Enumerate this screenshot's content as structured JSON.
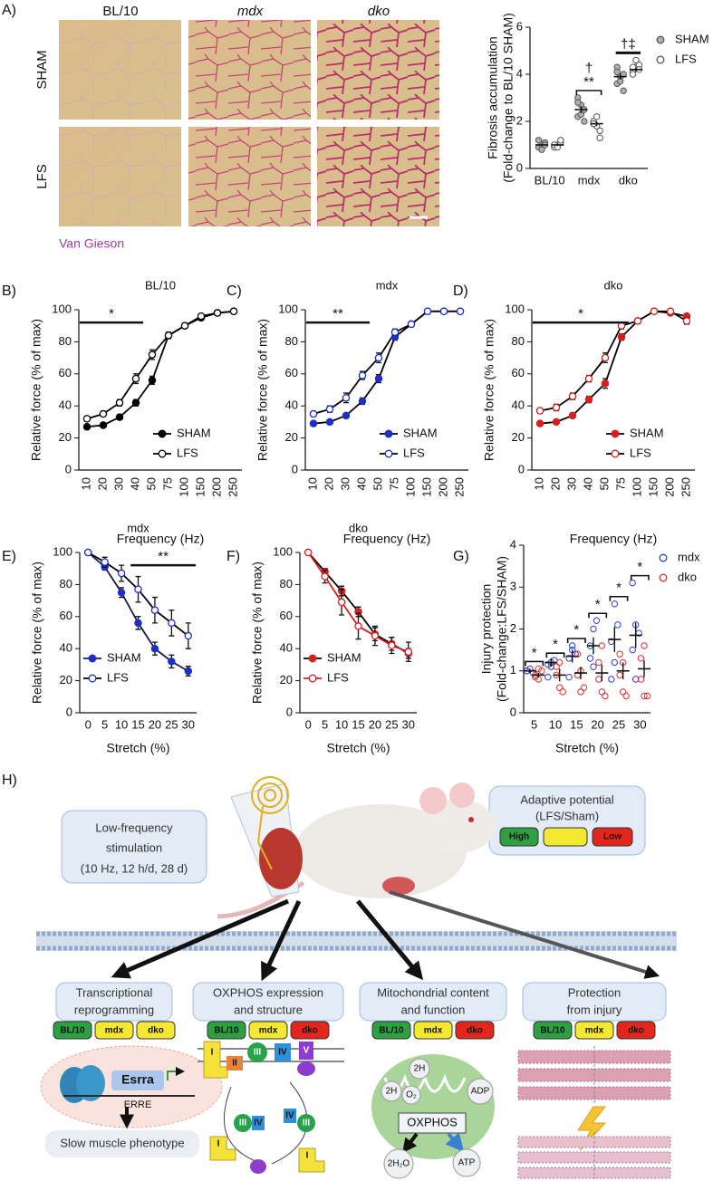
{
  "figure": {
    "panel_labels": [
      "A)",
      "B)",
      "C)",
      "D)",
      "E)",
      "F)",
      "G)",
      "H)"
    ]
  },
  "micrographs": {
    "columns": [
      "BL/10",
      "mdx",
      "dko"
    ],
    "rows": [
      "SHAM",
      "LFS"
    ],
    "stain": "Van Gieson"
  },
  "chart_data": [
    {
      "type": "dot",
      "ylabel": [
        "Fibrosis accumulation",
        "(Fold-change to BL/10 SHAM)"
      ],
      "categories": [
        "BL/10",
        "mdx",
        "dko"
      ],
      "ylim": [
        0,
        6
      ],
      "yticks": [
        0,
        2,
        4,
        6
      ],
      "legend": "right",
      "series": [
        {
          "name": "SHAM",
          "color": "#555555",
          "fill": "#b0b0b0",
          "points": [
            [
              0.9,
              1.0,
              1.1,
              1.2,
              0.8,
              1.0
            ],
            [
              3.0,
              2.7,
              2.5,
              2.2,
              2.3,
              2.0,
              2.8
            ],
            [
              3.6,
              3.9,
              4.0,
              4.3,
              3.7,
              3.3,
              4.1
            ]
          ],
          "means": [
            1.0,
            2.5,
            3.9
          ],
          "errors": [
            0.05,
            0.15,
            0.12
          ]
        },
        {
          "name": "LFS",
          "color": "#555555",
          "fill": "#ffffff",
          "points": [
            [
              0.9,
              1.0,
              1.1,
              1.0,
              0.9,
              1.2
            ],
            [
              2.0,
              1.8,
              1.6,
              1.9,
              2.2,
              1.3,
              1.9
            ],
            [
              4.1,
              4.3,
              4.4,
              4.0,
              4.6,
              4.2,
              4.3
            ]
          ],
          "means": [
            1.0,
            1.9,
            4.2
          ],
          "errors": [
            0.05,
            0.1,
            0.08
          ]
        }
      ],
      "annotations": [
        {
          "category": "mdx",
          "style": "bracket",
          "labels": [
            "**",
            "†"
          ]
        },
        {
          "category": "dko",
          "style": "bar",
          "labels": [
            "†‡"
          ]
        }
      ]
    },
    {
      "type": "line",
      "title": "BL/10",
      "xlabel": "Frequency (Hz)",
      "ylabel": "Relative force (% of max)",
      "categories": [
        "10",
        "20",
        "30",
        "40",
        "50",
        "75",
        "100",
        "150",
        "200",
        "250"
      ],
      "rotate_xticks": true,
      "ylim": [
        0,
        100
      ],
      "yticks": [
        0,
        20,
        40,
        60,
        80,
        100
      ],
      "legend": "lower right",
      "series": [
        {
          "name": "SHAM",
          "color": "#000000",
          "fill": "#000000",
          "line_color": "#000000",
          "values": [
            27,
            28,
            33,
            42,
            56,
            84,
            90,
            95,
            98,
            99
          ],
          "errors": [
            1,
            1,
            1.5,
            2,
            2.5,
            2,
            1.5,
            1,
            1,
            1
          ]
        },
        {
          "name": "LFS",
          "color": "#000000",
          "fill": "#ffffff",
          "line_color": "#000000",
          "values": [
            32,
            35,
            42,
            57,
            72,
            84,
            90,
            96,
            98,
            99
          ],
          "errors": [
            1.5,
            1.5,
            2,
            3,
            3,
            2,
            1.5,
            1,
            1,
            1
          ]
        }
      ],
      "significance": {
        "label": "*",
        "from": "10",
        "to": "40"
      }
    },
    {
      "type": "line",
      "title": "mdx",
      "xlabel": "Frequency (Hz)",
      "ylabel": "Relative force (% of max)",
      "categories": [
        "10",
        "20",
        "30",
        "40",
        "50",
        "75",
        "100",
        "150",
        "200",
        "250"
      ],
      "rotate_xticks": true,
      "ylim": [
        0,
        100
      ],
      "yticks": [
        0,
        20,
        40,
        60,
        80,
        100
      ],
      "legend": "lower right",
      "series": [
        {
          "name": "SHAM",
          "color": "#1f2fc4",
          "fill": "#1f2fc4",
          "line_color": "#000000",
          "values": [
            29,
            30,
            34,
            43,
            57,
            83,
            91,
            99,
            99,
            99
          ],
          "errors": [
            1,
            1,
            1.5,
            2,
            2.5,
            2,
            1.5,
            1,
            1,
            1
          ]
        },
        {
          "name": "LFS",
          "color": "#1f2fc4",
          "fill": "#ffffff",
          "line_color": "#000000",
          "values": [
            35,
            38,
            45,
            59,
            70,
            86,
            91,
            99,
            99,
            99
          ],
          "errors": [
            1.5,
            2,
            3,
            2.5,
            3,
            2,
            1.5,
            1,
            1,
            1
          ]
        }
      ],
      "significance": {
        "label": "**",
        "from": "10",
        "to": "40"
      }
    },
    {
      "type": "line",
      "title": "dko",
      "xlabel": "Frequency (Hz)",
      "ylabel": "Relative force (% of max)",
      "categories": [
        "10",
        "20",
        "30",
        "40",
        "50",
        "75",
        "100",
        "150",
        "200",
        "250"
      ],
      "rotate_xticks": true,
      "ylim": [
        0,
        100
      ],
      "yticks": [
        0,
        20,
        40,
        60,
        80,
        100
      ],
      "legend": "lower right",
      "series": [
        {
          "name": "SHAM",
          "color": "#d42020",
          "fill": "#d42020",
          "line_color": "#000000",
          "values": [
            29,
            30,
            34,
            44,
            54,
            83,
            93,
            99,
            98,
            96
          ],
          "errors": [
            1,
            1,
            1.5,
            2,
            3,
            2,
            1.5,
            1,
            1,
            1.5
          ]
        },
        {
          "name": "LFS",
          "color": "#d42020",
          "fill": "#ffffff",
          "line_color": "#000000",
          "values": [
            37,
            39,
            46,
            57,
            70,
            90,
            93,
            99,
            99,
            93
          ],
          "errors": [
            1.5,
            2,
            2,
            2,
            3,
            2,
            1.5,
            1,
            1,
            2
          ]
        }
      ],
      "significance": {
        "label": "*",
        "from": "10",
        "to": "75"
      }
    },
    {
      "type": "line",
      "title": "mdx",
      "xlabel": "Stretch (%)",
      "ylabel": "Relative force (% of max)",
      "categories": [
        "0",
        "5",
        "10",
        "15",
        "20",
        "25",
        "30"
      ],
      "ylim": [
        0,
        100
      ],
      "yticks": [
        0,
        20,
        40,
        60,
        80,
        100
      ],
      "legend": "lower left",
      "series": [
        {
          "name": "SHAM",
          "color": "#1f2fc4",
          "fill": "#1f2fc4",
          "line_color": "#1a1a4a",
          "values": [
            100,
            91,
            75,
            56,
            40,
            32,
            26
          ],
          "errors": [
            0,
            2,
            3,
            4,
            4,
            4,
            3
          ]
        },
        {
          "name": "LFS",
          "color": "#1f2fc4",
          "fill": "#ffffff",
          "line_color": "#000000",
          "values": [
            100,
            94,
            87,
            77,
            64,
            56,
            48
          ],
          "errors": [
            0,
            3,
            5,
            8,
            8,
            8,
            8
          ]
        }
      ],
      "significance": {
        "label": "**",
        "from": "15",
        "to": "30"
      }
    },
    {
      "type": "line",
      "title": "dko",
      "xlabel": "Stretch (%)",
      "ylabel": "Relative force (% of max)",
      "categories": [
        "0",
        "5",
        "10",
        "15",
        "20",
        "25",
        "30"
      ],
      "ylim": [
        0,
        100
      ],
      "yticks": [
        0,
        20,
        40,
        60,
        80,
        100
      ],
      "legend": "lower left",
      "series": [
        {
          "name": "SHAM",
          "color": "#d42020",
          "fill": "#d42020",
          "line_color": "#000000",
          "values": [
            100,
            88,
            76,
            63,
            49,
            43,
            37
          ],
          "errors": [
            0,
            2,
            3,
            3,
            4,
            4,
            3
          ]
        },
        {
          "name": "LFS",
          "color": "#d42020",
          "fill": "#ffffff",
          "line_color": "#d42020",
          "values": [
            100,
            85,
            69,
            54,
            48,
            42,
            38
          ],
          "errors": [
            0,
            4,
            8,
            8,
            6,
            5,
            6
          ]
        }
      ]
    },
    {
      "type": "dot",
      "xlabel": "Stretch (%)",
      "ylabel": [
        "Injury protection",
        "(Fold-change:LFS/SHAM)"
      ],
      "categories": [
        "5",
        "10",
        "15",
        "20",
        "25",
        "30"
      ],
      "ylim": [
        0,
        4
      ],
      "yticks": [
        0,
        1,
        2,
        3,
        4
      ],
      "legend": "right",
      "series": [
        {
          "name": "mdx",
          "color": "#2a3fd6",
          "fill": "none",
          "points": [
            [
              1.0,
              1.05,
              0.95,
              1.0
            ],
            [
              1.15,
              1.2,
              1.25,
              0.85,
              1.1
            ],
            [
              1.3,
              1.5,
              1.4,
              0.85,
              1.6
            ],
            [
              1.6,
              2.0,
              2.2,
              1.3,
              1.1
            ],
            [
              1.7,
              2.6,
              2.1,
              0.8,
              1.2
            ],
            [
              3.1,
              2.1,
              1.9,
              1.5,
              0.8
            ]
          ],
          "means": [
            1.0,
            1.2,
            1.35,
            1.6,
            1.75,
            1.85
          ],
          "errors": [
            0.05,
            0.1,
            0.15,
            0.2,
            0.3,
            0.3
          ]
        },
        {
          "name": "dko",
          "color": "#e03030",
          "fill": "none",
          "points": [
            [
              0.9,
              0.8,
              1.0,
              0.85,
              1.05
            ],
            [
              0.9,
              0.6,
              0.5,
              1.1,
              1.2
            ],
            [
              0.9,
              0.5,
              0.6,
              1.4,
              1.0
            ],
            [
              0.8,
              0.5,
              0.4,
              1.2,
              1.6
            ],
            [
              0.9,
              0.5,
              0.4,
              1.4,
              1.2
            ],
            [
              1.3,
              0.4,
              0.4,
              0.8,
              1.6
            ]
          ],
          "means": [
            0.9,
            0.9,
            0.95,
            0.95,
            1.0,
            1.05
          ],
          "errors": [
            0.05,
            0.15,
            0.15,
            0.2,
            0.2,
            0.2
          ]
        }
      ],
      "annotations": [
        {
          "category": "5",
          "style": "bracket",
          "labels": [
            "*"
          ]
        },
        {
          "category": "10",
          "style": "bracket",
          "labels": [
            "*"
          ]
        },
        {
          "category": "15",
          "style": "bracket",
          "labels": [
            "*"
          ]
        },
        {
          "category": "20",
          "style": "bracket",
          "labels": [
            "*"
          ]
        },
        {
          "category": "25",
          "style": "bracket",
          "labels": [
            "*"
          ]
        },
        {
          "category": "30",
          "style": "bracket",
          "labels": [
            "*"
          ]
        }
      ]
    }
  ],
  "diagram": {
    "stimulation": [
      "Low-frequency",
      "stimulation",
      "(10 Hz, 12 h/d, 28 d)"
    ],
    "adaptive_potential": {
      "title": [
        "Adaptive potential",
        "(LFS/Sham)"
      ],
      "high": "High",
      "low": "Low"
    },
    "outcomes": [
      {
        "title": [
          "Transcriptional",
          "reprogramming"
        ],
        "badges": [
          {
            "label": "BL/10",
            "color": "#2ea043"
          },
          {
            "label": "mdx",
            "color": "#f5e833"
          },
          {
            "label": "dko",
            "color": "#f5e833"
          }
        ]
      },
      {
        "title": [
          "OXPHOS expression",
          "and structure"
        ],
        "badges": [
          {
            "label": "BL/10",
            "color": "#2ea043"
          },
          {
            "label": "mdx",
            "color": "#f5e833"
          },
          {
            "label": "dko",
            "color": "#e3261c"
          }
        ]
      },
      {
        "title": [
          "Mitochondrial content",
          "and function"
        ],
        "badges": [
          {
            "label": "BL/10",
            "color": "#2ea043"
          },
          {
            "label": "mdx",
            "color": "#f5e833"
          },
          {
            "label": "dko",
            "color": "#e3261c"
          }
        ]
      },
      {
        "title": [
          "Protection",
          "from injury"
        ],
        "badges": [
          {
            "label": "BL/10",
            "color": "#2ea043"
          },
          {
            "label": "mdx",
            "color": "#f5e833"
          },
          {
            "label": "dko",
            "color": "#e3261c"
          }
        ]
      }
    ],
    "transcription": {
      "gene": "Esrra",
      "element": "ERRE",
      "phenotype": "Slow muscle phenotype"
    },
    "complexes": [
      "I",
      "II",
      "III",
      "IV",
      "V"
    ],
    "mitochondrion": {
      "inputs": [
        "2H",
        "2H",
        "O₂",
        "ADP"
      ],
      "process": "OXPHOS",
      "outputs": [
        "2H₂O",
        "ATP"
      ]
    }
  }
}
